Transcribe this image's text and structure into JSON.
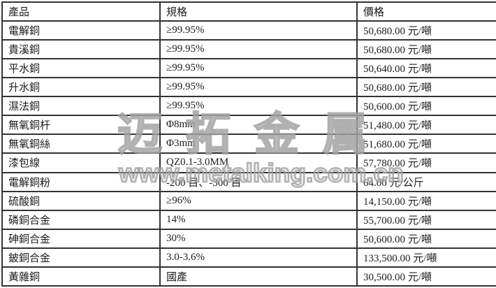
{
  "watermark": {
    "brand": "迈拓金属",
    "url": "www.metalking.com.cn"
  },
  "colors": {
    "border": "#333333",
    "text": "#1c1c1c",
    "watermark_gray": "#a8a8a8"
  },
  "table": {
    "headers": [
      "產品",
      "規格",
      "價格"
    ],
    "rows": [
      {
        "product": "電解銅",
        "spec": "≥99.95%",
        "price": "50,680.00 元/噸"
      },
      {
        "product": "貴溪銅",
        "spec": "≥99.95%",
        "price": "50,680.00 元/噸"
      },
      {
        "product": "平水銅",
        "spec": "≥99.95%",
        "price": "50,640.00 元/噸"
      },
      {
        "product": "升水銅",
        "spec": "≥99.95%",
        "price": "50,680.00 元/噸"
      },
      {
        "product": "濕法銅",
        "spec": "≥99.95%",
        "price": "50,600.00 元/噸"
      },
      {
        "product": "無氧銅杆",
        "spec": "Φ8mm",
        "price": "51,480.00 元/噸"
      },
      {
        "product": "無氧銅絲",
        "spec": "Φ3mm",
        "price": "51,680.00 元/噸"
      },
      {
        "product": "漆包線",
        "spec": "QZ0.1-3.0MM",
        "price": "57,780.00 元/噸"
      },
      {
        "product": "電解銅粉",
        "spec": "-200 目、-300 目",
        "price": "64.00 元/公斤"
      },
      {
        "product": "硫酸銅",
        "spec": "≥96%",
        "price": "14,150.00 元/噸"
      },
      {
        "product": "磷銅合金",
        "spec": "14%",
        "price": "55,700.00 元/噸"
      },
      {
        "product": "砷銅合金",
        "spec": "30%",
        "price": "50,600.00 元/噸"
      },
      {
        "product": "鈹銅合金",
        "spec": "3.0-3.6%",
        "price": "133,500.00 元/噸"
      },
      {
        "product": "黃雜銅",
        "spec": "國產",
        "price": "30,500.00 元/噸"
      }
    ]
  }
}
